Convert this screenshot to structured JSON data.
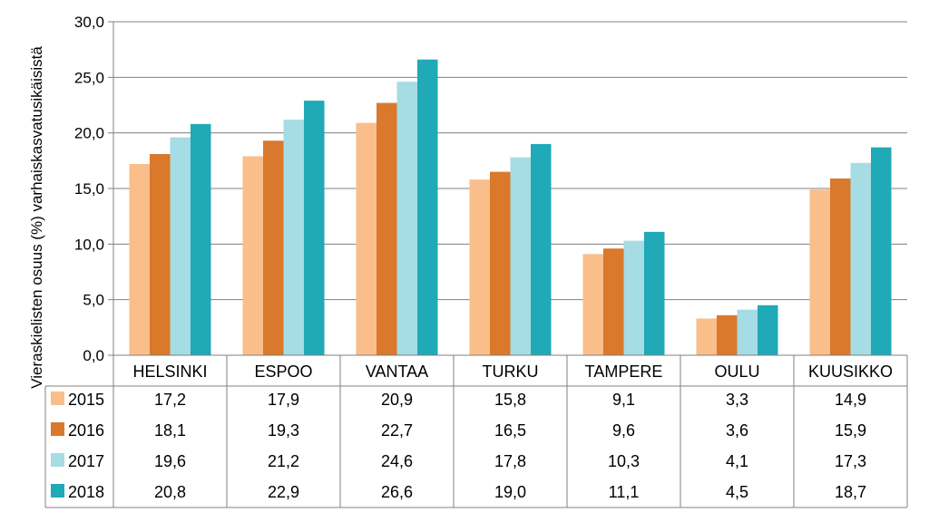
{
  "chart_data": {
    "type": "bar",
    "title": "",
    "xlabel": "",
    "ylabel": "Vieraskielisten osuus (%) varhaiskasvatusikäisistä",
    "ylim": [
      0,
      30
    ],
    "yticks": [
      "0,0",
      "5,0",
      "10,0",
      "15,0",
      "20,0",
      "25,0",
      "30,0"
    ],
    "grid": true,
    "legend_position": "data-table-left",
    "categories": [
      "HELSINKI",
      "ESPOO",
      "VANTAA",
      "TURKU",
      "TAMPERE",
      "OULU",
      "KUUSIKKO"
    ],
    "series": [
      {
        "name": "2015",
        "color": "#F9BE8A",
        "values": [
          17.2,
          17.9,
          20.9,
          15.8,
          9.1,
          3.3,
          14.9
        ],
        "labels": [
          "17,2",
          "17,9",
          "20,9",
          "15,8",
          "9,1",
          "3,3",
          "14,9"
        ]
      },
      {
        "name": "2016",
        "color": "#DA782C",
        "values": [
          18.1,
          19.3,
          22.7,
          16.5,
          9.6,
          3.6,
          15.9
        ],
        "labels": [
          "18,1",
          "19,3",
          "22,7",
          "16,5",
          "9,6",
          "3,6",
          "15,9"
        ]
      },
      {
        "name": "2017",
        "color": "#A6DCE4",
        "values": [
          19.6,
          21.2,
          24.6,
          17.8,
          10.3,
          4.1,
          17.3
        ],
        "labels": [
          "19,6",
          "21,2",
          "24,6",
          "17,8",
          "10,3",
          "4,1",
          "17,3"
        ]
      },
      {
        "name": "2018",
        "color": "#20A9B7",
        "values": [
          20.8,
          22.9,
          26.6,
          19.0,
          11.1,
          4.5,
          18.7
        ],
        "labels": [
          "20,8",
          "22,9",
          "26,6",
          "19,0",
          "11,1",
          "4,5",
          "18,7"
        ]
      }
    ]
  }
}
